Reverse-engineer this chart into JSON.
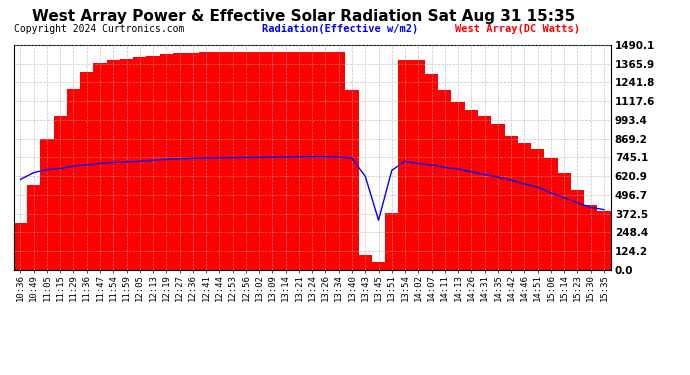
{
  "title": "West Array Power & Effective Solar Radiation Sat Aug 31 15:35",
  "copyright": "Copyright 2024 Curtronics.com",
  "legend_radiation": "Radiation(Effective w/m2)",
  "legend_west": "West Array(DC Watts)",
  "radiation_color": "blue",
  "west_color": "red",
  "background_color": "#ffffff",
  "yticks": [
    0.0,
    124.2,
    248.4,
    372.5,
    496.7,
    620.9,
    745.1,
    869.2,
    993.4,
    1117.6,
    1241.8,
    1365.9,
    1490.1
  ],
  "ymax": 1490.1,
  "ymin": 0.0,
  "xtick_labels": [
    "10:36",
    "10:49",
    "11:05",
    "11:15",
    "11:29",
    "11:36",
    "11:47",
    "11:54",
    "11:59",
    "12:05",
    "12:13",
    "12:19",
    "12:27",
    "12:36",
    "12:41",
    "12:44",
    "12:53",
    "12:56",
    "13:02",
    "13:09",
    "13:14",
    "13:21",
    "13:24",
    "13:26",
    "13:34",
    "13:40",
    "13:43",
    "13:45",
    "13:51",
    "13:54",
    "14:02",
    "14:07",
    "14:11",
    "14:13",
    "14:26",
    "14:31",
    "14:35",
    "14:42",
    "14:46",
    "14:51",
    "15:06",
    "15:14",
    "15:23",
    "15:30",
    "15:35"
  ],
  "west_values": [
    310,
    560,
    870,
    1020,
    1200,
    1310,
    1370,
    1390,
    1400,
    1410,
    1420,
    1430,
    1435,
    1440,
    1445,
    1445,
    1445,
    1445,
    1445,
    1445,
    1445,
    1445,
    1445,
    1445,
    1445,
    1190,
    100,
    50,
    380,
    1390,
    1390,
    1300,
    1190,
    1110,
    1060,
    1020,
    970,
    890,
    840,
    800,
    740,
    640,
    530,
    430,
    390
  ],
  "radiation_values": [
    600,
    645,
    665,
    672,
    688,
    696,
    706,
    712,
    716,
    720,
    727,
    733,
    737,
    740,
    742,
    743,
    744,
    745,
    746,
    747,
    748,
    749,
    750,
    750,
    748,
    740,
    620,
    330,
    660,
    720,
    705,
    695,
    680,
    668,
    650,
    633,
    615,
    595,
    570,
    548,
    510,
    478,
    445,
    415,
    400
  ],
  "grid_color": "#aaaaaa",
  "grid_alpha": 0.7,
  "bar_width": 1.0
}
